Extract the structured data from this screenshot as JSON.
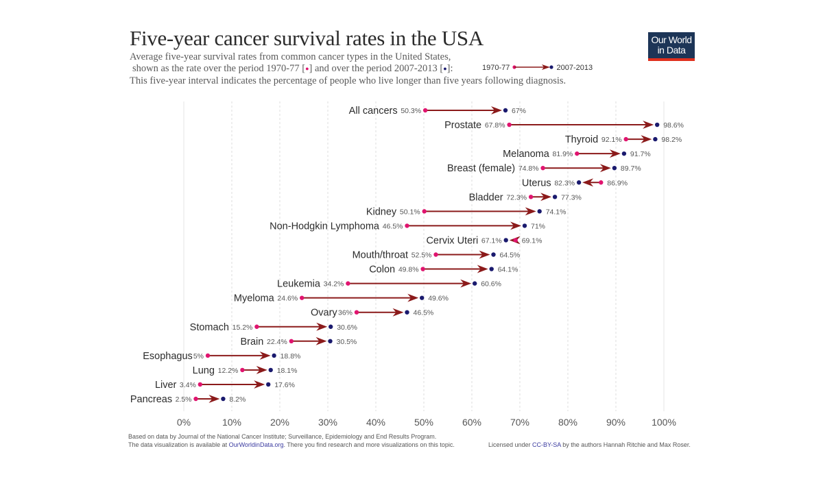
{
  "header": {
    "title": "Five-year cancer survival rates in the USA",
    "subtitle_line1": "Average five-year survival rates from common cancer types in the United States,",
    "subtitle_line2_a": "shown as the rate over the period 1970-77 [",
    "subtitle_line2_b": "] and over the period 2007-2013 [",
    "subtitle_line2_c": "]:",
    "subtitle_line3": "This five-year interval indicates the percentage of people who live longer than five years following diagnosis.",
    "dot_glyph": "●",
    "legend_from": "1970-77",
    "legend_to": "2007-2013",
    "logo_line1": "Our World",
    "logo_line2": "in Data"
  },
  "colors": {
    "period1": "#e0146f",
    "period2": "#1a1a6e",
    "arrow": "#8b1a1a",
    "logo_bg": "#1d3557",
    "logo_accent": "#e0301e"
  },
  "chart_data": {
    "type": "dumbbell-arrow",
    "title": "Five-year cancer survival rates in the USA",
    "xlabel": "",
    "ylabel": "",
    "xlim": [
      0,
      100
    ],
    "x_ticks": [
      "0%",
      "10%",
      "20%",
      "30%",
      "40%",
      "50%",
      "60%",
      "70%",
      "80%",
      "90%",
      "100%"
    ],
    "grid": true,
    "legend": "top-right",
    "series": [
      {
        "name": "1970-77",
        "color": "#e0146f"
      },
      {
        "name": "2007-2013",
        "color": "#1a1a6e"
      }
    ],
    "categories": [
      "All cancers",
      "Prostate",
      "Thyroid",
      "Melanoma",
      "Breast (female)",
      "Uterus",
      "Bladder",
      "Kidney",
      "Non-Hodgkin Lymphoma",
      "Cervix Uteri",
      "Mouth/throat",
      "Colon",
      "Leukemia",
      "Myeloma",
      "Ovary",
      "Stomach",
      "Brain",
      "Esophagus",
      "Lung",
      "Liver",
      "Pancreas"
    ],
    "rows": [
      {
        "label": "All cancers",
        "v1970": 50.3,
        "v2007": 67,
        "t1970": "50.3%",
        "t2007": "67%"
      },
      {
        "label": "Prostate",
        "v1970": 67.8,
        "v2007": 98.6,
        "t1970": "67.8%",
        "t2007": "98.6%"
      },
      {
        "label": "Thyroid",
        "v1970": 92.1,
        "v2007": 98.2,
        "t1970": "92.1%",
        "t2007": "98.2%"
      },
      {
        "label": "Melanoma",
        "v1970": 81.9,
        "v2007": 91.7,
        "t1970": "81.9%",
        "t2007": "91.7%"
      },
      {
        "label": "Breast (female)",
        "v1970": 74.8,
        "v2007": 89.7,
        "t1970": "74.8%",
        "t2007": "89.7%"
      },
      {
        "label": "Uterus",
        "v1970": 86.9,
        "v2007": 82.3,
        "t1970": "86.9%",
        "t2007": "82.3%"
      },
      {
        "label": "Bladder",
        "v1970": 72.3,
        "v2007": 77.3,
        "t1970": "72.3%",
        "t2007": "77.3%"
      },
      {
        "label": "Kidney",
        "v1970": 50.1,
        "v2007": 74.1,
        "t1970": "50.1%",
        "t2007": "74.1%"
      },
      {
        "label": "Non-Hodgkin Lymphoma",
        "v1970": 46.5,
        "v2007": 71,
        "t1970": "46.5%",
        "t2007": "71%"
      },
      {
        "label": "Cervix Uteri",
        "v1970": 69.1,
        "v2007": 67.1,
        "t1970": "69.1%",
        "t2007": "67.1%"
      },
      {
        "label": "Mouth/throat",
        "v1970": 52.5,
        "v2007": 64.5,
        "t1970": "52.5%",
        "t2007": "64.5%"
      },
      {
        "label": "Colon",
        "v1970": 49.8,
        "v2007": 64.1,
        "t1970": "49.8%",
        "t2007": "64.1%"
      },
      {
        "label": "Leukemia",
        "v1970": 34.2,
        "v2007": 60.6,
        "t1970": "34.2%",
        "t2007": "60.6%"
      },
      {
        "label": "Myeloma",
        "v1970": 24.6,
        "v2007": 49.6,
        "t1970": "24.6%",
        "t2007": "49.6%"
      },
      {
        "label": "Ovary",
        "v1970": 36,
        "v2007": 46.5,
        "t1970": "36%",
        "t2007": "46.5%"
      },
      {
        "label": "Stomach",
        "v1970": 15.2,
        "v2007": 30.6,
        "t1970": "15.2%",
        "t2007": "30.6%"
      },
      {
        "label": "Brain",
        "v1970": 22.4,
        "v2007": 30.5,
        "t1970": "22.4%",
        "t2007": "30.5%"
      },
      {
        "label": "Esophagus",
        "v1970": 5,
        "v2007": 18.8,
        "t1970": "5%",
        "t2007": "18.8%"
      },
      {
        "label": "Lung",
        "v1970": 12.2,
        "v2007": 18.1,
        "t1970": "12.2%",
        "t2007": "18.1%"
      },
      {
        "label": "Liver",
        "v1970": 3.4,
        "v2007": 17.6,
        "t1970": "3.4%",
        "t2007": "17.6%"
      },
      {
        "label": "Pancreas",
        "v1970": 2.5,
        "v2007": 8.2,
        "t1970": "2.5%",
        "t2007": "8.2%"
      }
    ]
  },
  "footer": {
    "source_line": "Based on data by Journal of the National Cancer Institute; Surveillance, Epidemiology and End Results Program.",
    "available_prefix": "The data visualization is available at ",
    "available_link": "OurWorldinData.org",
    "available_suffix": ". There you find research and more visualizations on this topic.",
    "license_prefix": "Licensed under ",
    "license_link": "CC-BY-SA",
    "license_suffix": " by the authors Hannah Ritchie and Max Roser."
  }
}
